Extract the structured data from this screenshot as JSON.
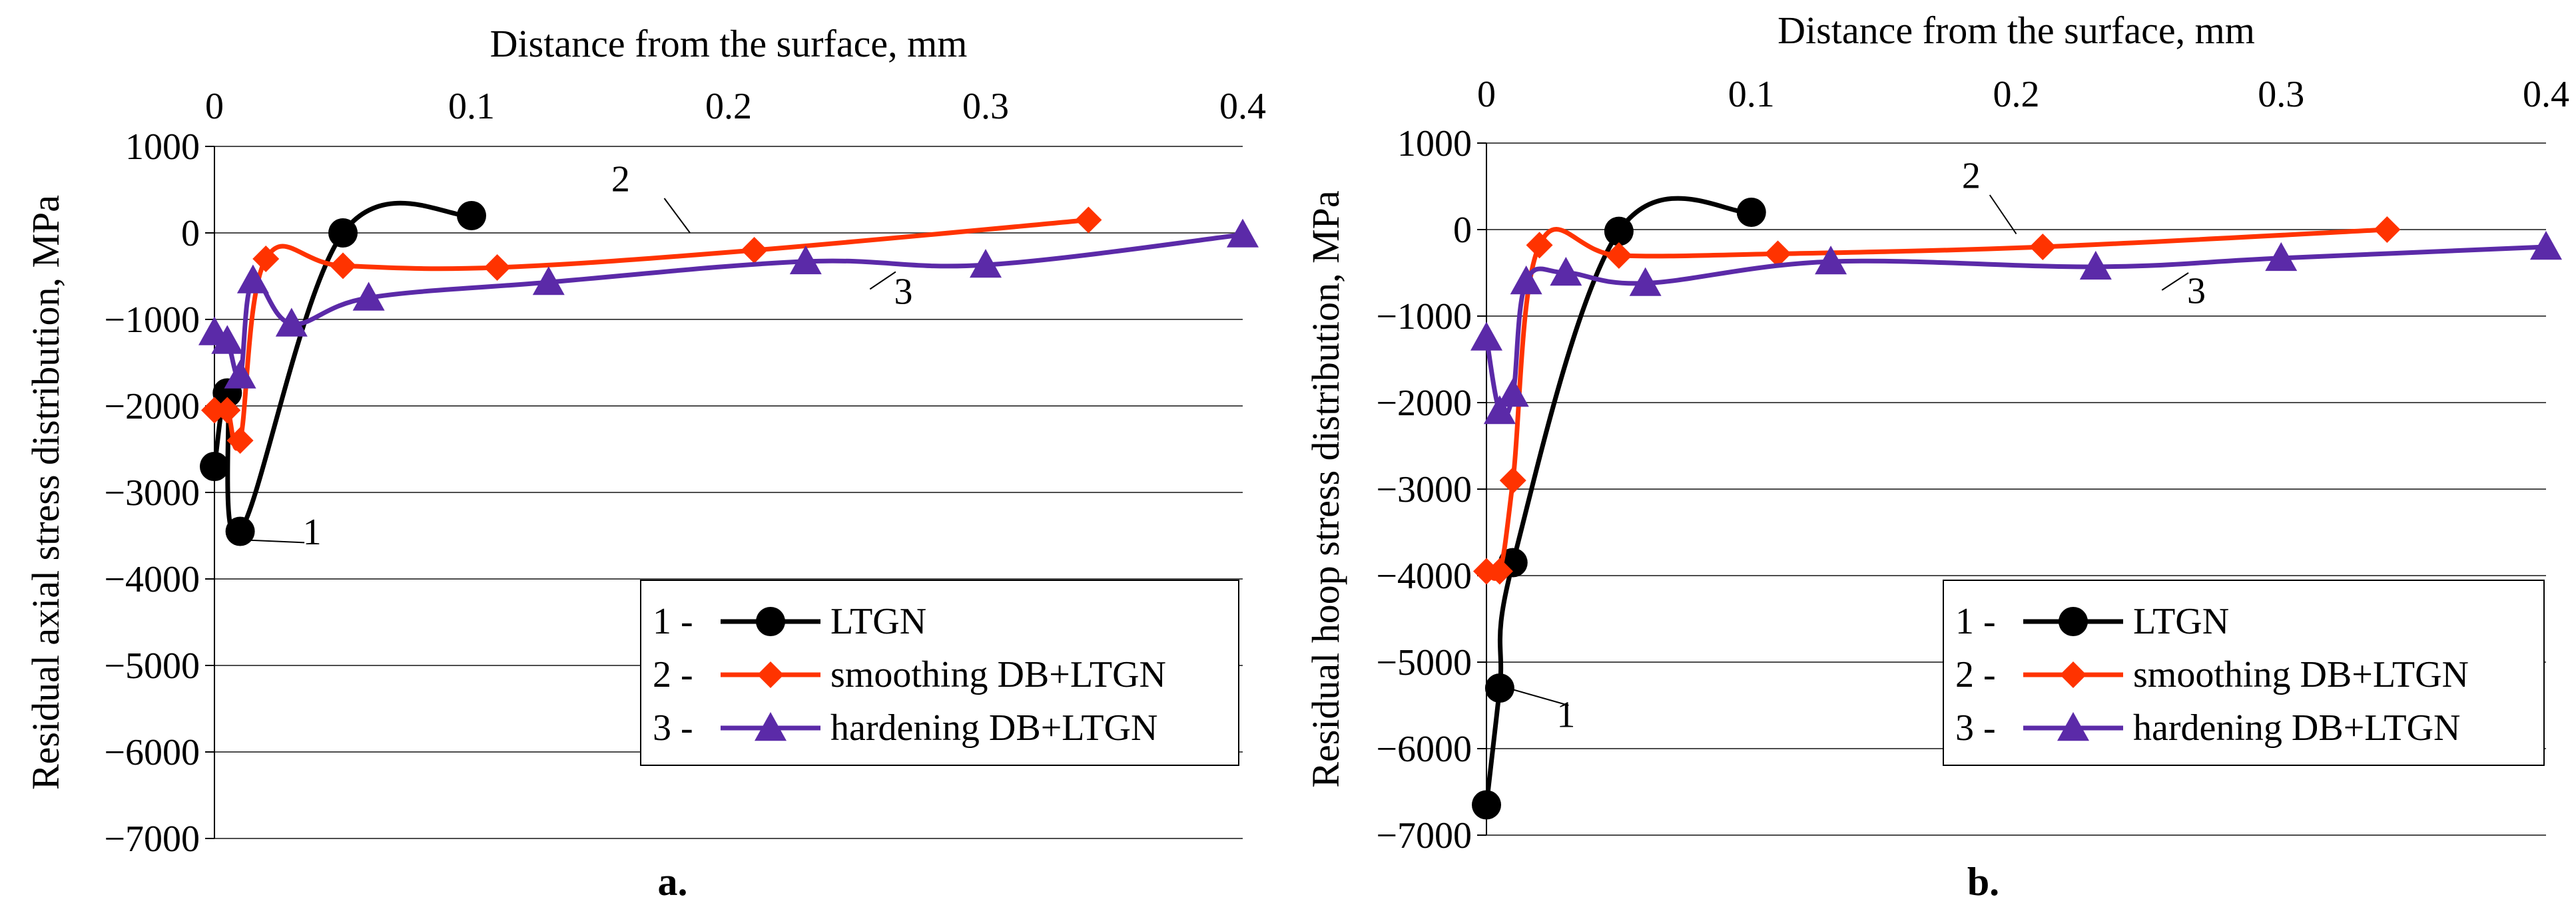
{
  "chart_data": [
    {
      "type": "line",
      "panel_label": "a.",
      "xlabel": "Distance from the surface, mm",
      "ylabel": "Residual axial stress distribution, MPa",
      "xlim": [
        0,
        0.4
      ],
      "ylim": [
        -7000,
        1000
      ],
      "xticks": [
        "0",
        "0.1",
        "0.2",
        "0.3",
        "0.4"
      ],
      "yticks": [
        "1000",
        "0",
        "−1000",
        "−2000",
        "−3000",
        "−4000",
        "−5000",
        "−6000",
        "−7000"
      ],
      "grid": "horizontal",
      "legend_position": "bottom-right",
      "series": [
        {
          "name": "LTGN",
          "number": "1 -",
          "callout": "1",
          "color": "#000000",
          "marker": "circle",
          "x": [
            0.0,
            0.005,
            0.01,
            0.05,
            0.1
          ],
          "y": [
            -2700,
            -1850,
            -3450,
            0,
            200
          ]
        },
        {
          "name": "smoothing DB+LTGN",
          "number": "2 -",
          "callout": "2",
          "color": "#ff3300",
          "marker": "diamond",
          "x": [
            0.0,
            0.005,
            0.01,
            0.02,
            0.05,
            0.11,
            0.21,
            0.34
          ],
          "y": [
            -2050,
            -2050,
            -2400,
            -300,
            -380,
            -400,
            -200,
            150
          ]
        },
        {
          "name": "hardening DB+LTGN",
          "number": "3 -",
          "callout": "3",
          "color": "#5b2aa8",
          "marker": "triangle",
          "x": [
            0.0,
            0.005,
            0.01,
            0.015,
            0.03,
            0.06,
            0.13,
            0.23,
            0.3,
            0.4
          ],
          "y": [
            -1150,
            -1250,
            -1650,
            -550,
            -1050,
            -750,
            -570,
            -330,
            -370,
            -20
          ]
        }
      ]
    },
    {
      "type": "line",
      "panel_label": "b.",
      "xlabel": "Distance from the surface, mm",
      "ylabel": "Residual hoop stress distribution, MPa",
      "xlim": [
        0,
        0.4
      ],
      "ylim": [
        -7000,
        1000
      ],
      "xticks": [
        "0",
        "0.1",
        "0.2",
        "0.3",
        "0.4"
      ],
      "yticks": [
        "1000",
        "0",
        "−1000",
        "−2000",
        "−3000",
        "−4000",
        "−5000",
        "−6000",
        "−7000"
      ],
      "grid": "horizontal",
      "legend_position": "bottom-right",
      "series": [
        {
          "name": "LTGN",
          "number": "1 -",
          "callout": "1",
          "color": "#000000",
          "marker": "circle",
          "x": [
            0.0,
            0.005,
            0.01,
            0.05,
            0.1
          ],
          "y": [
            -6650,
            -5300,
            -3850,
            -20,
            200
          ]
        },
        {
          "name": "smoothing DB+LTGN",
          "number": "2 -",
          "callout": "2",
          "color": "#ff3300",
          "marker": "diamond",
          "x": [
            0.0,
            0.005,
            0.01,
            0.02,
            0.05,
            0.11,
            0.21,
            0.34
          ],
          "y": [
            -3950,
            -3950,
            -2900,
            -180,
            -300,
            -280,
            -200,
            0
          ]
        },
        {
          "name": "hardening DB+LTGN",
          "number": "3 -",
          "callout": "3",
          "color": "#5b2aa8",
          "marker": "triangle",
          "x": [
            0.0,
            0.005,
            0.01,
            0.015,
            0.03,
            0.06,
            0.13,
            0.23,
            0.3,
            0.4
          ],
          "y": [
            -1250,
            -2100,
            -1900,
            -600,
            -500,
            -620,
            -370,
            -430,
            -330,
            -200
          ]
        }
      ]
    }
  ]
}
